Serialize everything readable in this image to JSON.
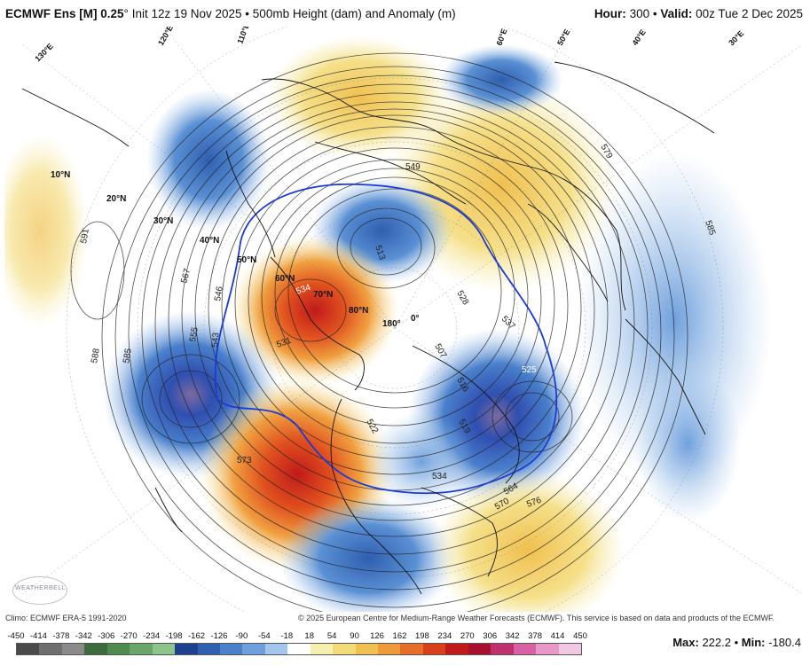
{
  "header": {
    "model": "ECMWF Ens [M] 0.25",
    "degree": "°",
    "init": "Init 12z 19 Nov 2025",
    "product": "500mb Height (dam) and Anomaly (m)",
    "hour_label": "Hour:",
    "hour": "300",
    "valid_label": "Valid:",
    "valid": "00z Tue 2 Dec 2025",
    "bullet": "•"
  },
  "footer": {
    "climo": "Climo: ECMWF ERA-5 1991-2020",
    "copyright": "© 2025 European Centre for Medium-Range Weather Forecasts (ECMWF). This service is based on data and products of the ECMWF.",
    "max_label": "Max:",
    "max": "222.2",
    "min_label": "Min:",
    "min": "-180.4"
  },
  "colorbar": {
    "ticks": [
      "-450",
      "-414",
      "-378",
      "-342",
      "-306",
      "-270",
      "-234",
      "-198",
      "-162",
      "-126",
      "-90",
      "-54",
      "-18",
      "18",
      "54",
      "90",
      "126",
      "162",
      "198",
      "234",
      "270",
      "306",
      "342",
      "378",
      "414",
      "450"
    ],
    "colors": [
      "#4a4a4a",
      "#6e6e6e",
      "#8a8a8a",
      "#3d6b3d",
      "#4f8a4f",
      "#6aa66a",
      "#8cc48c",
      "#1f3f8f",
      "#2f5fb0",
      "#4a80cc",
      "#6fa0dc",
      "#a4c6ec",
      "#ffffff",
      "#f5f0b0",
      "#f2dc7a",
      "#f0c050",
      "#ec9a3a",
      "#e66e28",
      "#d8401c",
      "#c01a1a",
      "#a81030",
      "#c0306c",
      "#d860a4",
      "#e898c8",
      "#f0c8e4"
    ]
  },
  "map_labels": {
    "lat_10": "10°N",
    "lat_20": "20°N",
    "lat_30": "30°N",
    "lat_40": "40°N",
    "lat_50": "50°N",
    "lat_60": "60°N",
    "lat_70": "70°N",
    "lat_80": "80°N",
    "lon_180": "180°",
    "lon_0": "0°",
    "lon_130e": "130°E",
    "lon_120e": "120°E",
    "lon_110e": "110°E",
    "lon_50e": "50°E",
    "lon_40e": "40°E",
    "lon_30e": "30°E",
    "lon_60e": "60°E",
    "c_591": "591",
    "c_588": "588",
    "c_585a": "585",
    "c_585b": "585",
    "c_579": "579",
    "c_576": "576",
    "c_573": "573",
    "c_570": "570",
    "c_567": "567",
    "c_564": "564",
    "c_561": "561",
    "c_555": "555",
    "c_549": "549",
    "c_546": "546",
    "c_543": "543",
    "c_537": "537",
    "c_534a": "534",
    "c_534b": "534",
    "c_531": "531",
    "c_528": "528",
    "c_525": "525",
    "c_522": "522",
    "c_519": "519",
    "c_516": "516",
    "c_513": "513",
    "c_507": "507"
  },
  "logo_text": "WEATHERBELL"
}
